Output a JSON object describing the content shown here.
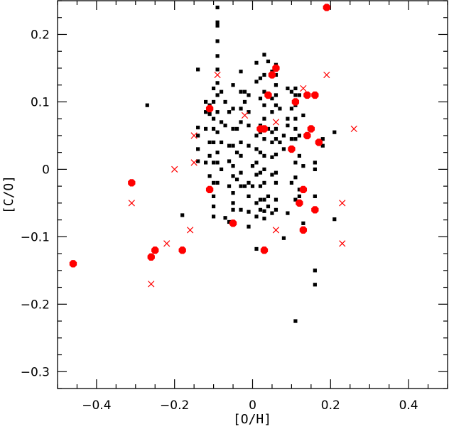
{
  "chart_data": {
    "type": "scatter",
    "xlabel": "[O/H]",
    "ylabel": "[C/O]",
    "xlim": [
      -0.5,
      0.5
    ],
    "ylim": [
      -0.325,
      0.25
    ],
    "x_ticks": [
      -0.4,
      -0.2,
      0,
      0.2,
      0.4
    ],
    "y_ticks": [
      -0.3,
      -0.2,
      -0.1,
      0,
      0.1,
      0.2
    ],
    "x_tick_labels": [
      "−0.4",
      "−0.2",
      "0",
      "0.2",
      "0.4"
    ],
    "y_tick_labels": [
      "−0.3",
      "−0.2",
      "−0.1",
      "0",
      "0.1",
      "0.2"
    ],
    "grid": false,
    "series": [
      {
        "marker": "square",
        "color": "#000000",
        "points": [
          [
            -0.27,
            0.095
          ],
          [
            -0.18,
            -0.068
          ],
          [
            -0.14,
            0.148
          ],
          [
            -0.14,
            0.062
          ],
          [
            -0.14,
            0.05
          ],
          [
            -0.14,
            0.03
          ],
          [
            -0.14,
            0.012
          ],
          [
            -0.12,
            0.1
          ],
          [
            -0.12,
            0.085
          ],
          [
            -0.12,
            0.06
          ],
          [
            -0.12,
            0.01
          ],
          [
            -0.11,
            0.095
          ],
          [
            -0.11,
            0.082
          ],
          [
            -0.11,
            0.04
          ],
          [
            -0.11,
            0.02
          ],
          [
            -0.11,
            -0.01
          ],
          [
            -0.11,
            -0.03
          ],
          [
            -0.1,
            0.12
          ],
          [
            -0.1,
            0.1
          ],
          [
            -0.1,
            0.075
          ],
          [
            -0.1,
            0.06
          ],
          [
            -0.1,
            0.04
          ],
          [
            -0.1,
            0.01
          ],
          [
            -0.1,
            -0.02
          ],
          [
            -0.1,
            -0.04
          ],
          [
            -0.1,
            -0.055
          ],
          [
            -0.1,
            -0.07
          ],
          [
            -0.09,
            0.24
          ],
          [
            -0.09,
            0.218
          ],
          [
            -0.09,
            0.213
          ],
          [
            -0.09,
            0.19
          ],
          [
            -0.09,
            0.168
          ],
          [
            -0.09,
            0.148
          ],
          [
            -0.09,
            0.128
          ],
          [
            -0.09,
            0.11
          ],
          [
            -0.09,
            0.085
          ],
          [
            -0.09,
            0.055
          ],
          [
            -0.09,
            0.025
          ],
          [
            -0.09,
            0.01
          ],
          [
            -0.09,
            -0.02
          ],
          [
            -0.08,
            0.115
          ],
          [
            -0.08,
            0.07
          ],
          [
            -0.08,
            0.04
          ],
          [
            -0.08,
            0.0
          ],
          [
            -0.07,
            0.1
          ],
          [
            -0.07,
            0.065
          ],
          [
            -0.07,
            -0.072
          ],
          [
            -0.06,
            0.085
          ],
          [
            -0.06,
            0.035
          ],
          [
            -0.06,
            0.012
          ],
          [
            -0.06,
            -0.025
          ],
          [
            -0.06,
            -0.078
          ],
          [
            -0.05,
            0.125
          ],
          [
            -0.05,
            0.09
          ],
          [
            -0.05,
            0.06
          ],
          [
            -0.05,
            0.035
          ],
          [
            -0.05,
            0.005
          ],
          [
            -0.05,
            -0.01
          ],
          [
            -0.05,
            -0.035
          ],
          [
            -0.05,
            -0.05
          ],
          [
            -0.05,
            -0.06
          ],
          [
            -0.04,
            0.06
          ],
          [
            -0.04,
            0.025
          ],
          [
            -0.04,
            -0.015
          ],
          [
            -0.03,
            0.145
          ],
          [
            -0.03,
            0.115
          ],
          [
            -0.03,
            0.09
          ],
          [
            -0.03,
            0.07
          ],
          [
            -0.03,
            0.04
          ],
          [
            -0.03,
            0.02
          ],
          [
            -0.03,
            -0.005
          ],
          [
            -0.03,
            -0.025
          ],
          [
            -0.03,
            -0.06
          ],
          [
            -0.02,
            0.115
          ],
          [
            -0.02,
            0.1
          ],
          [
            -0.02,
            -0.025
          ],
          [
            -0.01,
            0.11
          ],
          [
            -0.01,
            0.085
          ],
          [
            -0.01,
            0.065
          ],
          [
            -0.01,
            0.035
          ],
          [
            -0.01,
            -0.02
          ],
          [
            -0.01,
            -0.04
          ],
          [
            -0.01,
            -0.063
          ],
          [
            -0.01,
            -0.085
          ],
          [
            0.0,
            0.005
          ],
          [
            0.0,
            -0.025
          ],
          [
            0.01,
            0.158
          ],
          [
            0.01,
            0.13
          ],
          [
            0.01,
            0.05
          ],
          [
            0.01,
            0.03
          ],
          [
            0.01,
            0.01
          ],
          [
            0.01,
            -0.008
          ],
          [
            0.01,
            -0.05
          ],
          [
            0.01,
            -0.07
          ],
          [
            0.01,
            -0.118
          ],
          [
            0.02,
            0.135
          ],
          [
            0.02,
            0.105
          ],
          [
            0.02,
            0.065
          ],
          [
            0.02,
            0.055
          ],
          [
            0.02,
            0.025
          ],
          [
            0.02,
            -0.005
          ],
          [
            0.02,
            -0.025
          ],
          [
            0.02,
            -0.045
          ],
          [
            0.02,
            -0.06
          ],
          [
            0.03,
            0.17
          ],
          [
            0.03,
            0.14
          ],
          [
            0.03,
            0.115
          ],
          [
            0.03,
            0.095
          ],
          [
            0.03,
            0.075
          ],
          [
            0.03,
            0.045
          ],
          [
            0.03,
            0.02
          ],
          [
            0.03,
            0.0
          ],
          [
            0.03,
            -0.02
          ],
          [
            0.03,
            -0.045
          ],
          [
            0.03,
            -0.062
          ],
          [
            0.03,
            -0.073
          ],
          [
            0.03,
            -0.12
          ],
          [
            0.04,
            0.16
          ],
          [
            0.04,
            0.06
          ],
          [
            0.04,
            -0.04
          ],
          [
            0.04,
            -0.055
          ],
          [
            0.05,
            0.145
          ],
          [
            0.05,
            0.105
          ],
          [
            0.05,
            0.085
          ],
          [
            0.05,
            0.055
          ],
          [
            0.05,
            0.04
          ],
          [
            0.05,
            0.018
          ],
          [
            0.05,
            -0.008
          ],
          [
            0.05,
            -0.065
          ],
          [
            0.06,
            0.155
          ],
          [
            0.06,
            0.14
          ],
          [
            0.06,
            0.125
          ],
          [
            0.06,
            0.11
          ],
          [
            0.06,
            0.095
          ],
          [
            0.06,
            0.06
          ],
          [
            0.06,
            0.045
          ],
          [
            0.06,
            0.022
          ],
          [
            0.06,
            -0.005
          ],
          [
            0.06,
            -0.02
          ],
          [
            0.06,
            -0.045
          ],
          [
            0.06,
            -0.06
          ],
          [
            0.07,
            0.09
          ],
          [
            0.07,
            0.04
          ],
          [
            0.08,
            0.05
          ],
          [
            0.08,
            0.03
          ],
          [
            0.08,
            -0.102
          ],
          [
            0.09,
            0.12
          ],
          [
            0.09,
            0.075
          ],
          [
            0.09,
            0.065
          ],
          [
            0.09,
            -0.065
          ],
          [
            0.1,
            0.115
          ],
          [
            0.1,
            0.09
          ],
          [
            0.1,
            0.045
          ],
          [
            0.1,
            -0.02
          ],
          [
            0.11,
            0.12
          ],
          [
            0.11,
            0.11
          ],
          [
            0.11,
            0.095
          ],
          [
            0.11,
            0.075
          ],
          [
            0.11,
            0.06
          ],
          [
            0.11,
            0.045
          ],
          [
            0.11,
            0.01
          ],
          [
            0.11,
            -0.012
          ],
          [
            0.11,
            -0.045
          ],
          [
            0.11,
            -0.225
          ],
          [
            0.12,
            0.11
          ],
          [
            0.12,
            0.05
          ],
          [
            0.12,
            0.02
          ],
          [
            0.12,
            -0.03
          ],
          [
            0.12,
            -0.04
          ],
          [
            0.13,
            0.08
          ],
          [
            0.13,
            0.005
          ],
          [
            0.13,
            -0.08
          ],
          [
            0.16,
            0.01
          ],
          [
            0.16,
            0.0
          ],
          [
            0.16,
            -0.04
          ],
          [
            0.16,
            -0.15
          ],
          [
            0.16,
            -0.171
          ],
          [
            0.18,
            0.035
          ],
          [
            0.18,
            0.045
          ],
          [
            0.21,
            0.055
          ],
          [
            0.21,
            -0.074
          ]
        ]
      },
      {
        "marker": "circle",
        "color": "#ff0000",
        "points": [
          [
            -0.46,
            -0.14
          ],
          [
            -0.31,
            -0.02
          ],
          [
            -0.26,
            -0.13
          ],
          [
            -0.25,
            -0.12
          ],
          [
            -0.18,
            -0.12
          ],
          [
            -0.11,
            -0.03
          ],
          [
            -0.11,
            0.09
          ],
          [
            -0.05,
            -0.08
          ],
          [
            0.02,
            0.06
          ],
          [
            0.03,
            0.06
          ],
          [
            0.03,
            -0.12
          ],
          [
            0.04,
            0.11
          ],
          [
            0.05,
            0.14
          ],
          [
            0.06,
            0.15
          ],
          [
            0.1,
            0.03
          ],
          [
            0.11,
            0.1
          ],
          [
            0.12,
            -0.05
          ],
          [
            0.13,
            -0.09
          ],
          [
            0.13,
            -0.03
          ],
          [
            0.14,
            0.11
          ],
          [
            0.14,
            0.05
          ],
          [
            0.15,
            0.06
          ],
          [
            0.16,
            0.11
          ],
          [
            0.16,
            -0.06
          ],
          [
            0.17,
            0.04
          ],
          [
            0.19,
            0.24
          ]
        ]
      },
      {
        "marker": "cross",
        "color": "#ff0000",
        "points": [
          [
            -0.31,
            -0.05
          ],
          [
            -0.26,
            -0.17
          ],
          [
            -0.22,
            -0.11
          ],
          [
            -0.2,
            0.0
          ],
          [
            -0.16,
            -0.09
          ],
          [
            -0.15,
            0.05
          ],
          [
            -0.15,
            0.01
          ],
          [
            -0.09,
            0.14
          ],
          [
            -0.02,
            0.08
          ],
          [
            0.06,
            0.07
          ],
          [
            0.06,
            -0.09
          ],
          [
            0.13,
            0.12
          ],
          [
            0.19,
            0.14
          ],
          [
            0.23,
            -0.05
          ],
          [
            0.23,
            -0.11
          ],
          [
            0.26,
            0.06
          ]
        ]
      }
    ]
  }
}
